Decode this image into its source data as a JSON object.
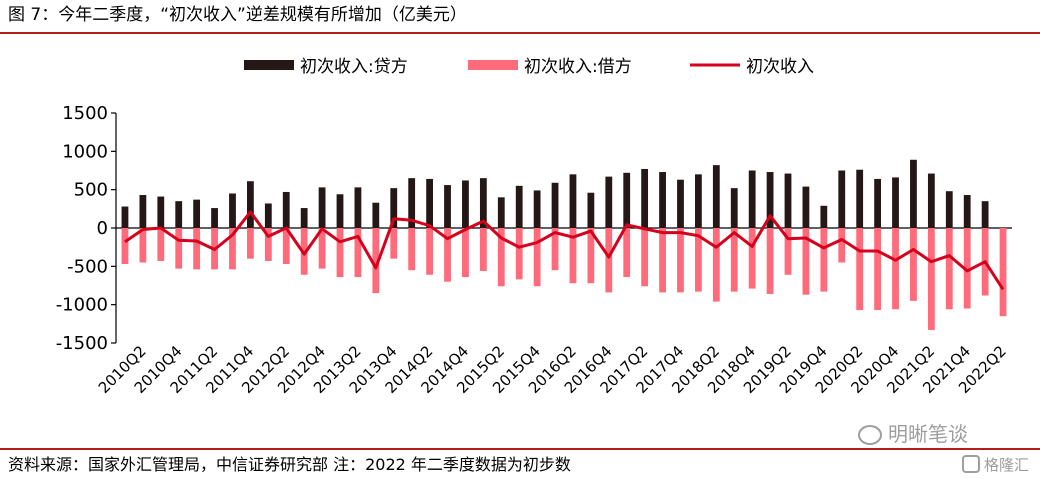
{
  "header": {
    "title": "图 7：今年二季度，“初次收入”逆差规模有所增加（亿美元）"
  },
  "footer": {
    "source": "资料来源：国家外汇管理局，中信证券研究部  注：2022 年二季度数据为初步数",
    "watermark": "明晰笔谈",
    "watermark2": "格隆汇"
  },
  "colors": {
    "credit": "#231815",
    "debit": "#ff6b7a",
    "net": "#d6001c",
    "rule": "#b71c1c"
  },
  "chart_data": {
    "type": "bar",
    "ylim": [
      -1500,
      1500
    ],
    "yticks": [
      1500,
      1000,
      500,
      0,
      -500,
      -1000,
      -1500
    ],
    "legend_position": "top",
    "tick_labels": [
      "2010Q2",
      "2010Q4",
      "2011Q2",
      "2011Q4",
      "2012Q2",
      "2012Q4",
      "2013Q2",
      "2013Q4",
      "2014Q2",
      "2014Q4",
      "2015Q2",
      "2015Q4",
      "2016Q2",
      "2016Q4",
      "2017Q2",
      "2017Q4",
      "2018Q2",
      "2018Q4",
      "2019Q2",
      "2019Q4",
      "2020Q2",
      "2020Q4",
      "2021Q2",
      "2021Q4",
      "2022Q2"
    ],
    "categories": [
      "2010Q1",
      "2010Q2",
      "2010Q3",
      "2010Q4",
      "2011Q1",
      "2011Q2",
      "2011Q3",
      "2011Q4",
      "2012Q1",
      "2012Q2",
      "2012Q3",
      "2012Q4",
      "2013Q1",
      "2013Q2",
      "2013Q3",
      "2013Q4",
      "2014Q1",
      "2014Q2",
      "2014Q3",
      "2014Q4",
      "2015Q1",
      "2015Q2",
      "2015Q3",
      "2015Q4",
      "2016Q1",
      "2016Q2",
      "2016Q3",
      "2016Q4",
      "2017Q1",
      "2017Q2",
      "2017Q3",
      "2017Q4",
      "2018Q1",
      "2018Q2",
      "2018Q3",
      "2018Q4",
      "2019Q1",
      "2019Q2",
      "2019Q3",
      "2019Q4",
      "2020Q1",
      "2020Q2",
      "2020Q3",
      "2020Q4",
      "2021Q1",
      "2021Q2",
      "2021Q3",
      "2021Q4",
      "2022Q1",
      "2022Q2"
    ],
    "series": [
      {
        "name": "初次收入:贷方",
        "kind": "bar",
        "values": [
          280,
          430,
          410,
          350,
          370,
          260,
          450,
          610,
          320,
          470,
          260,
          530,
          440,
          530,
          330,
          520,
          650,
          640,
          560,
          620,
          650,
          400,
          550,
          490,
          590,
          700,
          460,
          670,
          720,
          770,
          730,
          630,
          700,
          820,
          520,
          750,
          730,
          710,
          540,
          290,
          750,
          760,
          640,
          660,
          890,
          710,
          480,
          430,
          350,
          0
        ]
      },
      {
        "name": "初次收入:借方",
        "kind": "bar",
        "values": [
          -470,
          -450,
          -430,
          -530,
          -540,
          -540,
          -540,
          -400,
          -430,
          -470,
          -610,
          -530,
          -640,
          -640,
          -850,
          -400,
          -550,
          -610,
          -700,
          -640,
          -560,
          -760,
          -670,
          -760,
          -550,
          -720,
          -720,
          -840,
          -640,
          -760,
          -840,
          -840,
          -830,
          -960,
          -830,
          -790,
          -860,
          -610,
          -870,
          -830,
          -450,
          -1070,
          -1070,
          -1060,
          -950,
          -1330,
          -1060,
          -1050,
          -880,
          -1150
        ]
      },
      {
        "name": "初次收入",
        "kind": "line",
        "values": [
          -180,
          -20,
          0,
          -160,
          -170,
          -280,
          -90,
          210,
          -110,
          0,
          -340,
          -10,
          -180,
          -110,
          -520,
          120,
          100,
          30,
          -140,
          -20,
          90,
          -130,
          -250,
          -190,
          -60,
          -120,
          -40,
          -380,
          40,
          -10,
          -60,
          -60,
          -100,
          -250,
          -60,
          -240,
          160,
          -140,
          -130,
          -260,
          -150,
          -300,
          -300,
          -420,
          -280,
          -440,
          -360,
          -560,
          -440,
          -800
        ]
      }
    ]
  }
}
